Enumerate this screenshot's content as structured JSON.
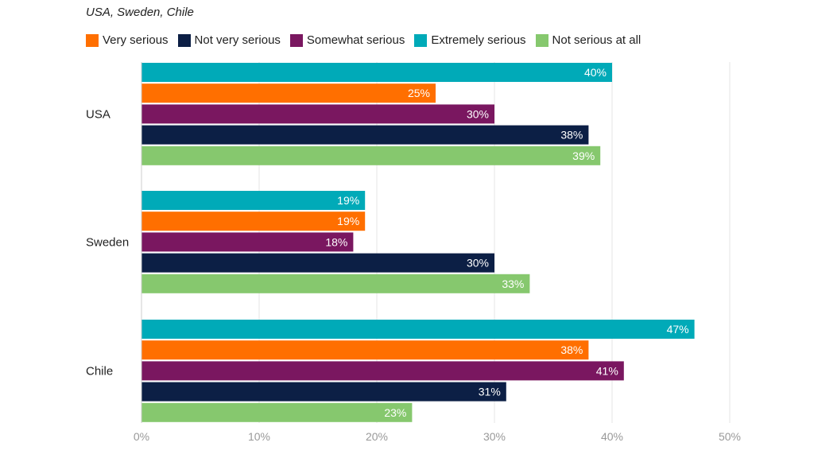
{
  "chart_data": {
    "type": "bar",
    "orientation": "horizontal",
    "subtitle": "USA, Sweden, Chile",
    "categories": [
      "USA",
      "Sweden",
      "Chile"
    ],
    "series": [
      {
        "name": "Extremely serious",
        "color": "#00aab8",
        "values": [
          40,
          19,
          47
        ]
      },
      {
        "name": "Very serious",
        "color": "#ff6f00",
        "values": [
          25,
          19,
          38
        ]
      },
      {
        "name": "Somewhat serious",
        "color": "#7a1760",
        "values": [
          30,
          18,
          41
        ]
      },
      {
        "name": "Not very serious",
        "color": "#0c1f45",
        "values": [
          38,
          30,
          31
        ]
      },
      {
        "name": "Not serious at all",
        "color": "#86c86e",
        "values": [
          39,
          33,
          23
        ]
      }
    ],
    "legend_order": [
      "Very serious",
      "Not very serious",
      "Somewhat serious",
      "Extremely serious",
      "Not serious at all"
    ],
    "xlim": [
      0,
      50
    ],
    "ticks": [
      0,
      10,
      20,
      30,
      40,
      50
    ],
    "tick_labels": [
      "0%",
      "10%",
      "20%",
      "30%",
      "40%",
      "50%"
    ],
    "value_suffix": "%",
    "legend_position": "top"
  }
}
